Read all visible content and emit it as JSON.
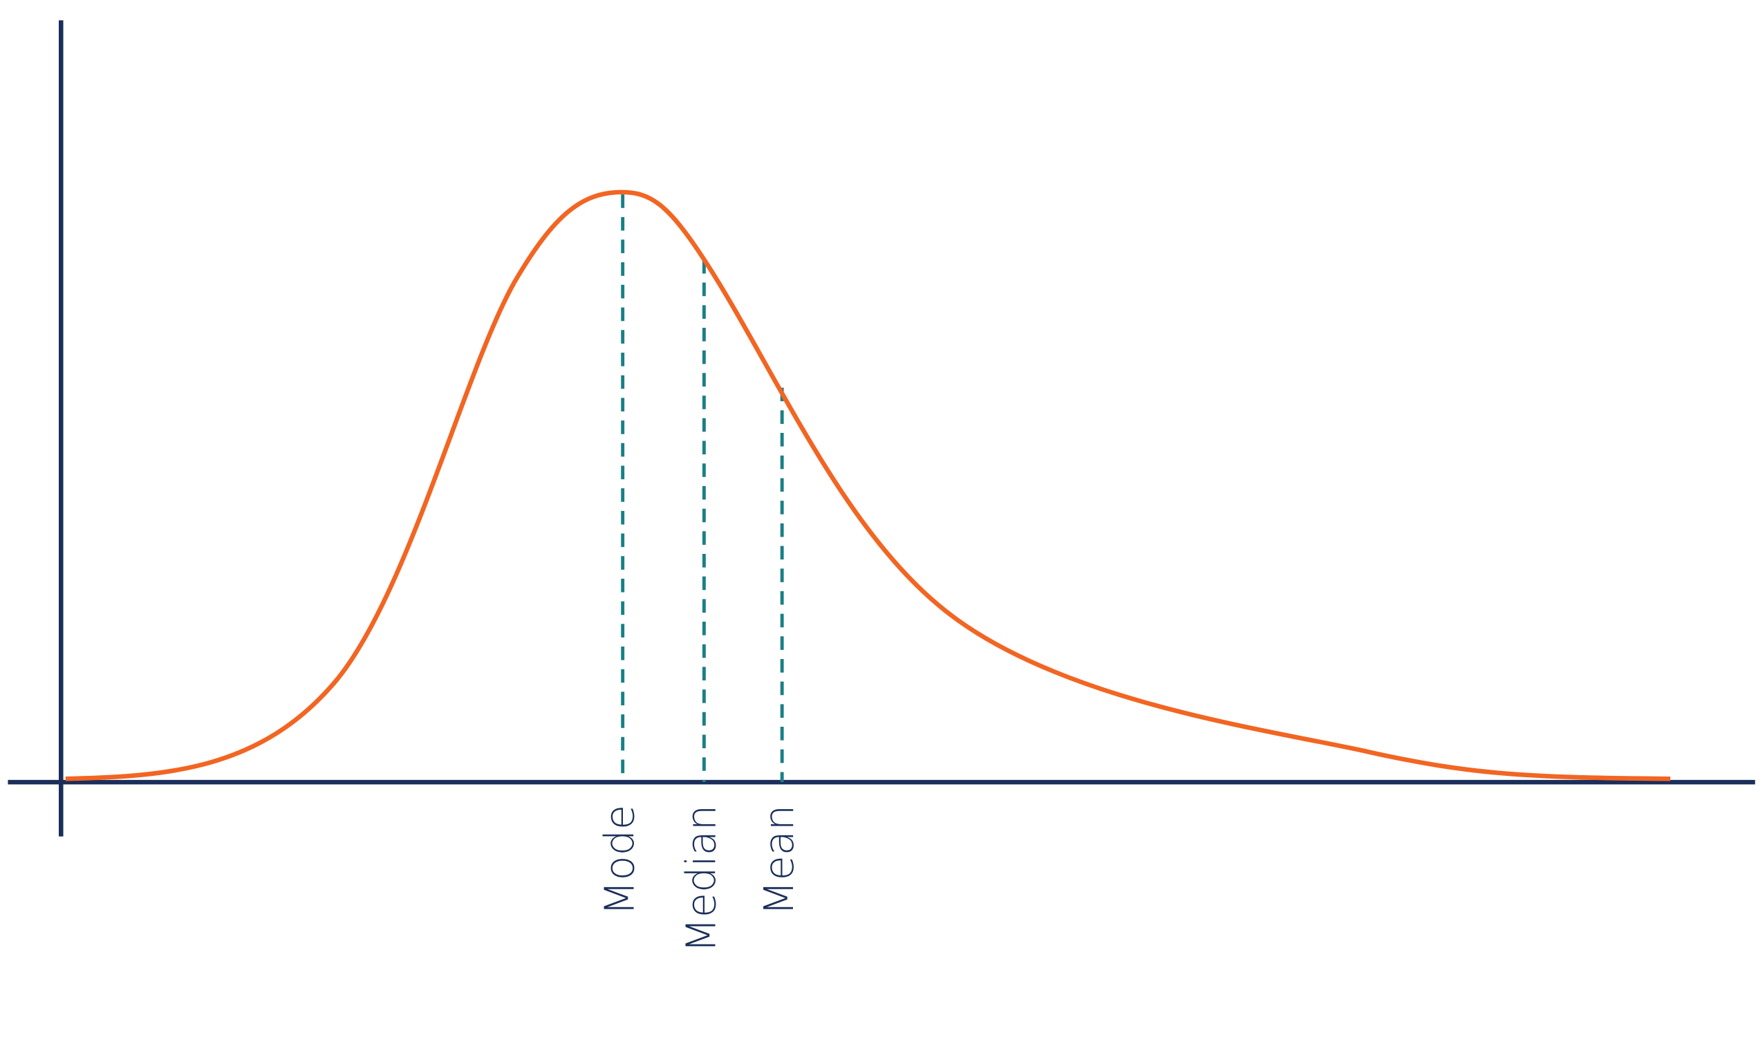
{
  "markers": [
    {
      "label": "Mode"
    },
    {
      "label": "Median"
    },
    {
      "label": "Mean"
    }
  ]
}
